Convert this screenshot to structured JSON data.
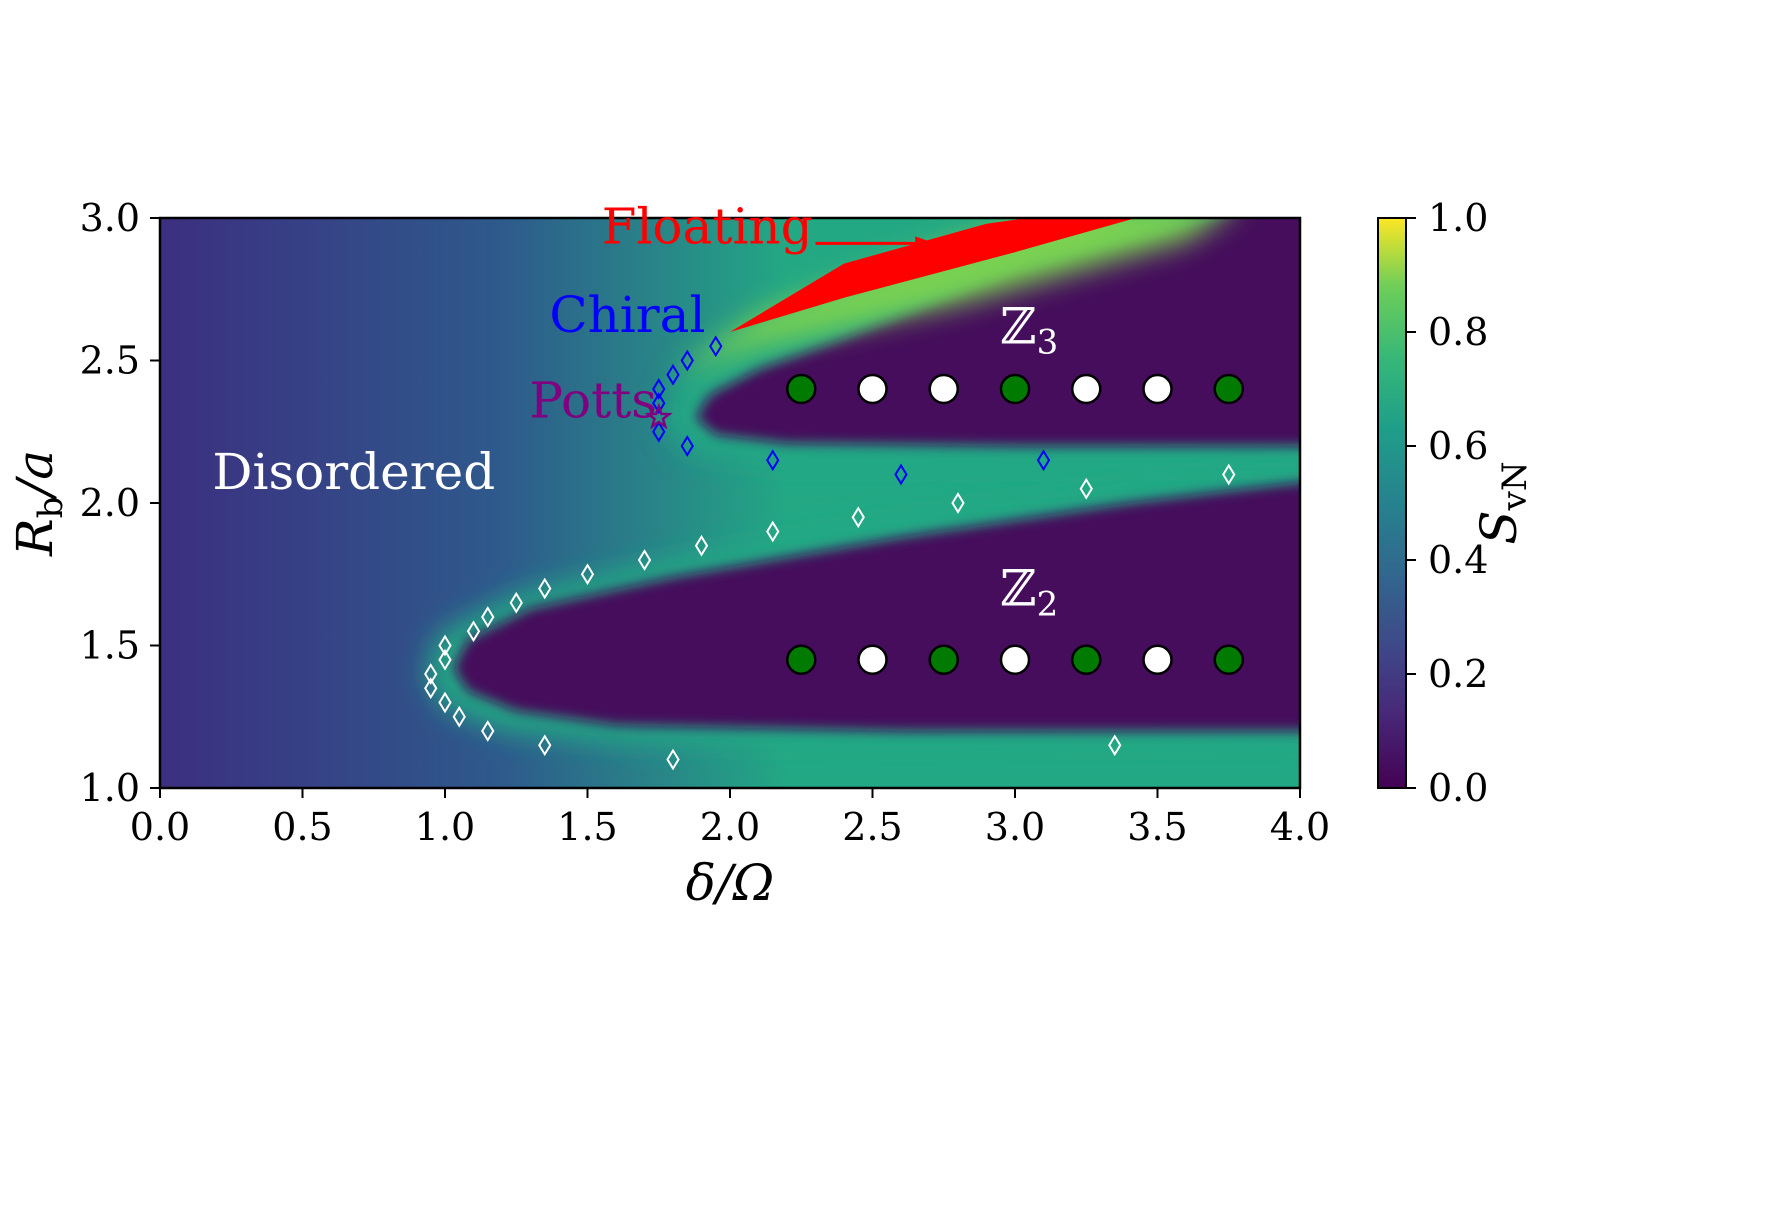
{
  "colors": {
    "disordered_edge": "#3c2f80",
    "disordered_core": "#2e5a8c",
    "ordered": "#440a5c",
    "boundary": "#23a884",
    "floating_glow": "#7ad151",
    "floating": "#ff0000",
    "chiral": "#0000ff",
    "potts": "#800080",
    "white_label": "#ffffff",
    "atom_green": "#007a00",
    "atom_white": "#ffffff"
  },
  "chart_data": {
    "type": "heatmap",
    "title": "",
    "xlabel": "δ/Ω",
    "ylabel": "R_b/a",
    "xlim": [
      0.0,
      4.0
    ],
    "ylim": [
      1.0,
      3.0
    ],
    "xticks": [
      "0.0",
      "0.5",
      "1.0",
      "1.5",
      "2.0",
      "2.5",
      "3.0",
      "3.5",
      "4.0"
    ],
    "yticks": [
      "1.0",
      "1.5",
      "2.0",
      "2.5",
      "3.0"
    ],
    "colorbar": {
      "label": "S_vN",
      "range": [
        0.0,
        1.0
      ],
      "ticks": [
        "0.0",
        "0.2",
        "0.4",
        "0.6",
        "0.8",
        "1.0"
      ],
      "colormap": "viridis"
    },
    "grid": false,
    "region_labels": [
      {
        "text": "Disordered",
        "x": 0.68,
        "y": 2.05,
        "color": "#ffffff"
      },
      {
        "text": "Floating",
        "x": 1.92,
        "y": 2.91,
        "color": "#ff0000"
      },
      {
        "text": "Chiral",
        "x": 1.64,
        "y": 2.6,
        "color": "#0000ff"
      },
      {
        "text": "Potts",
        "x": 1.52,
        "y": 2.3,
        "color": "#800080"
      }
    ],
    "phase_labels": [
      {
        "symbol": "ℤ",
        "subscript": "3",
        "x": 3.05,
        "y": 2.56
      },
      {
        "symbol": "ℤ",
        "subscript": "2",
        "x": 3.05,
        "y": 1.64
      }
    ],
    "atom_rows": [
      {
        "y": 2.4,
        "x": [
          2.25,
          2.5,
          2.75,
          3.0,
          3.25,
          3.5,
          3.75
        ],
        "pattern": [
          "green",
          "white",
          "white",
          "green",
          "white",
          "white",
          "green"
        ]
      },
      {
        "y": 1.45,
        "x": [
          2.25,
          2.5,
          2.75,
          3.0,
          3.25,
          3.5,
          3.75
        ],
        "pattern": [
          "green",
          "white",
          "green",
          "white",
          "green",
          "white",
          "green"
        ]
      }
    ],
    "potts_point": {
      "x": 1.75,
      "y": 2.3
    },
    "floating_arrow": {
      "from": [
        2.3,
        2.89
      ],
      "to": [
        2.72,
        2.89
      ]
    },
    "series": [
      {
        "marker": "diamond",
        "color": "#ffffff",
        "points": [
          [
            0.95,
            1.35
          ],
          [
            0.95,
            1.4
          ],
          [
            1.0,
            1.45
          ],
          [
            1.0,
            1.5
          ],
          [
            1.0,
            1.3
          ],
          [
            1.05,
            1.25
          ],
          [
            1.1,
            1.55
          ],
          [
            1.15,
            1.6
          ],
          [
            1.15,
            1.2
          ],
          [
            1.25,
            1.65
          ],
          [
            1.35,
            1.7
          ],
          [
            1.35,
            1.15
          ],
          [
            1.5,
            1.75
          ],
          [
            1.7,
            1.8
          ],
          [
            1.8,
            1.1
          ],
          [
            1.9,
            1.85
          ],
          [
            2.15,
            1.9
          ],
          [
            2.45,
            1.95
          ],
          [
            2.8,
            2.0
          ],
          [
            3.25,
            2.05
          ],
          [
            3.35,
            1.15
          ],
          [
            3.75,
            2.1
          ]
        ]
      },
      {
        "marker": "diamond",
        "color": "#0000ff",
        "points": [
          [
            1.75,
            2.25
          ],
          [
            1.75,
            2.35
          ],
          [
            1.75,
            2.4
          ],
          [
            1.8,
            2.45
          ],
          [
            1.85,
            2.5
          ],
          [
            1.95,
            2.55
          ],
          [
            1.85,
            2.2
          ],
          [
            2.15,
            2.15
          ],
          [
            2.6,
            2.1
          ],
          [
            3.1,
            2.15
          ]
        ]
      }
    ]
  }
}
